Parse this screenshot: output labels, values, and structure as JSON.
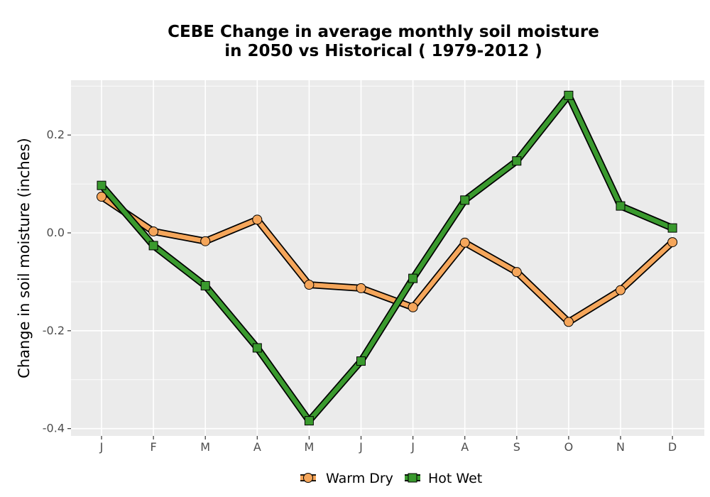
{
  "chart_data": {
    "type": "line",
    "title_lines": [
      "CEBE  Change in average monthly soil moisture",
      "in 2050 vs Historical ( 1979-2012 )"
    ],
    "xlabel": "",
    "ylabel": "Change in soil moisture (inches)",
    "categories": [
      "J",
      "F",
      "M",
      "A",
      "M",
      "J",
      "J",
      "A",
      "S",
      "O",
      "N",
      "D"
    ],
    "yticks": [
      0.2,
      0.0,
      -0.2,
      -0.4
    ],
    "ytick_labels": [
      "0.2",
      "0.0",
      "-0.2",
      "-0.4"
    ],
    "ylim": [
      -0.415,
      0.312
    ],
    "grid": true,
    "legend_position": "bottom",
    "series": [
      {
        "name": "Warm Dry",
        "marker": "circle",
        "color": "#f5a65b",
        "values": [
          0.074,
          0.003,
          -0.017,
          0.027,
          -0.106,
          -0.113,
          -0.152,
          -0.02,
          -0.08,
          -0.182,
          -0.117,
          -0.019
        ]
      },
      {
        "name": "Hot Wet",
        "marker": "square",
        "color": "#3a9a2e",
        "values": [
          0.097,
          -0.026,
          -0.108,
          -0.235,
          -0.384,
          -0.262,
          -0.093,
          0.067,
          0.147,
          0.281,
          0.055,
          0.01
        ]
      }
    ],
    "background": "#ebebeb",
    "grid_color": "#ffffff"
  }
}
